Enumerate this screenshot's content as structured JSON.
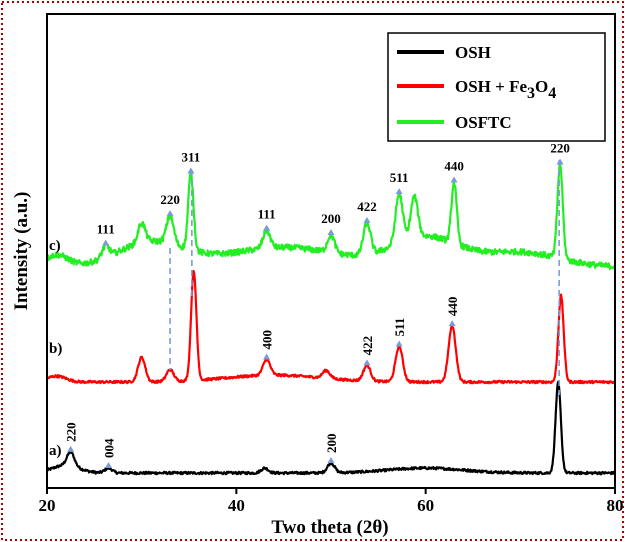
{
  "chart_data": {
    "type": "line",
    "title": "",
    "xlabel": "Two theta (2θ)",
    "ylabel": "Intensity (a.u.)",
    "xlim": [
      20,
      80
    ],
    "x_ticks": [
      20,
      40,
      60,
      80
    ],
    "y_ticks": "none",
    "grid": false,
    "legend_position": "top-right",
    "colors": {
      "OSH": "#000000",
      "OSH + Fe3O4": "#ff0000",
      "OSFTC": "#22ee22",
      "marker": "#7b9bd8",
      "frame": "#b00000"
    },
    "series": [
      {
        "key": "a",
        "name": "OSH",
        "curve_label": "a)",
        "offset": 0,
        "peaks": [
          {
            "x": 22.5,
            "h": 0.14,
            "label": "220"
          },
          {
            "x": 26.5,
            "h": 0.05,
            "label": "004"
          },
          {
            "x": 43.0,
            "h": 0.05,
            "label": ""
          },
          {
            "x": 50.0,
            "h": 0.1,
            "label": "200"
          },
          {
            "x": 74.0,
            "h": 0.92,
            "label": ""
          }
        ]
      },
      {
        "key": "b",
        "name": "OSH + Fe3O4",
        "curve_label": "b)",
        "offset": 1.1,
        "peaks": [
          {
            "x": 30.0,
            "h": 0.25,
            "label": ""
          },
          {
            "x": 33.0,
            "h": 0.12,
            "label": ""
          },
          {
            "x": 35.5,
            "h": 1.12,
            "label": ""
          },
          {
            "x": 43.2,
            "h": 0.16,
            "label": "400"
          },
          {
            "x": 49.5,
            "h": 0.08,
            "label": ""
          },
          {
            "x": 53.8,
            "h": 0.16,
            "label": "422"
          },
          {
            "x": 57.2,
            "h": 0.36,
            "label": "511"
          },
          {
            "x": 62.8,
            "h": 0.57,
            "label": "440"
          },
          {
            "x": 74.3,
            "h": 0.88,
            "label": ""
          }
        ]
      },
      {
        "key": "c",
        "name": "OSFTC",
        "curve_label": "c)",
        "offset": 2.5,
        "peaks": [
          {
            "x": 26.2,
            "h": 0.12,
            "label": "111"
          },
          {
            "x": 30.0,
            "h": 0.2,
            "label": ""
          },
          {
            "x": 33.0,
            "h": 0.28,
            "label": "220"
          },
          {
            "x": 35.2,
            "h": 0.78,
            "label": "311"
          },
          {
            "x": 43.2,
            "h": 0.18,
            "label": "111"
          },
          {
            "x": 50.0,
            "h": 0.18,
            "label": "200"
          },
          {
            "x": 53.8,
            "h": 0.32,
            "label": "422"
          },
          {
            "x": 57.2,
            "h": 0.5,
            "label": "511"
          },
          {
            "x": 58.8,
            "h": 0.42,
            "label": ""
          },
          {
            "x": 63.0,
            "h": 0.62,
            "label": "440"
          },
          {
            "x": 74.2,
            "h": 0.96,
            "label": "220"
          }
        ]
      }
    ]
  },
  "legend": [
    {
      "series": "OSH",
      "label": "OSH"
    },
    {
      "series": "OSH + Fe3O4",
      "label_main": "OSH + Fe",
      "sub1": "3",
      "mid": "O",
      "sub2": "4"
    },
    {
      "series": "OSFTC",
      "label": "OSFTC"
    }
  ]
}
